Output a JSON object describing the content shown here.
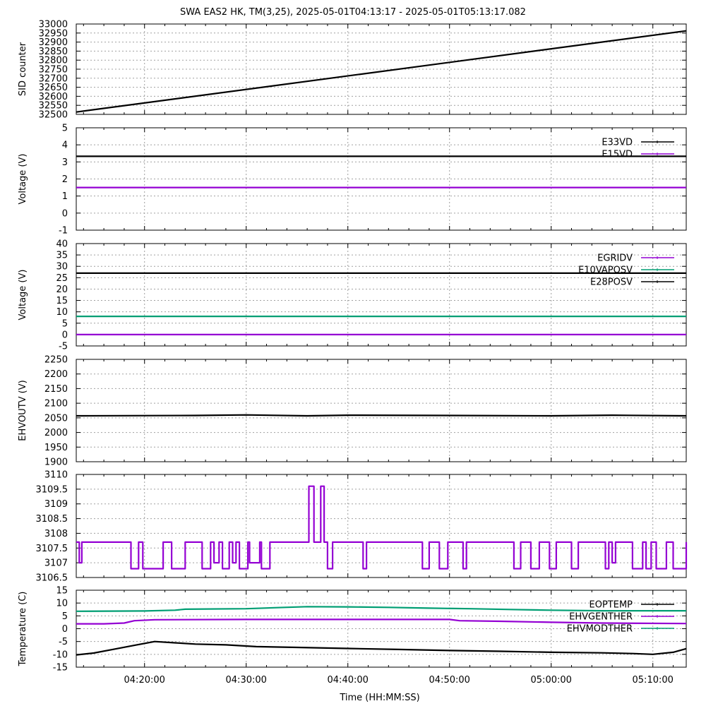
{
  "figure": {
    "title": "SWA EAS2 HK, TM(3,25),  2025-05-01T04:13:17 - 2025-05-01T05:13:17.082",
    "xlabel": "Time (HH:MM:SS)",
    "x_range": [
      "04:13:17",
      "05:13:17"
    ],
    "x_ticks": [
      "04:20:00",
      "04:30:00",
      "04:40:00",
      "04:50:00",
      "05:00:00",
      "05:10:00"
    ]
  },
  "chart_data": [
    {
      "type": "line",
      "ylabel": "SID counter",
      "ylim": [
        32500,
        33000
      ],
      "yticks": [
        "32500",
        "32550",
        "32600",
        "32650",
        "32700",
        "32750",
        "32800",
        "32850",
        "32900",
        "32950",
        "33000"
      ],
      "grid": true,
      "legend": "",
      "series": [
        {
          "name": "",
          "color": "#000000",
          "x": [
            "04:13:17",
            "05:13:17"
          ],
          "values": [
            32513,
            32962
          ]
        }
      ]
    },
    {
      "type": "line",
      "ylabel": "Voltage (V)",
      "ylim": [
        -1,
        5
      ],
      "yticks": [
        "-1",
        "0",
        "1",
        "2",
        "3",
        "4",
        "5"
      ],
      "grid": true,
      "legend": "top-right",
      "series": [
        {
          "name": "E33VD",
          "color": "#000000",
          "x": [
            "04:13:17",
            "05:13:17"
          ],
          "values": [
            3.33,
            3.33
          ]
        },
        {
          "name": "E15VD",
          "color": "#9400d3",
          "x": [
            "04:13:17",
            "05:13:17"
          ],
          "values": [
            1.5,
            1.5
          ]
        }
      ]
    },
    {
      "type": "line",
      "ylabel": "Voltage (V)",
      "ylim": [
        -5,
        40
      ],
      "yticks": [
        "-5",
        "0",
        "5",
        "10",
        "15",
        "20",
        "25",
        "30",
        "35",
        "40"
      ],
      "grid": true,
      "legend": "top-right",
      "series": [
        {
          "name": "EGRIDV",
          "color": "#9400d3",
          "x": [
            "04:13:17",
            "05:13:17"
          ],
          "values": [
            0,
            0
          ]
        },
        {
          "name": "E10VAPOSV",
          "color": "#009e73",
          "x": [
            "04:13:17",
            "05:13:17"
          ],
          "values": [
            8,
            8
          ]
        },
        {
          "name": "E28POSV",
          "color": "#000000",
          "x": [
            "04:13:17",
            "05:13:17"
          ],
          "values": [
            27,
            27
          ]
        }
      ]
    },
    {
      "type": "line",
      "ylabel": "EHVOUTV (V)",
      "ylim": [
        1900,
        2250
      ],
      "yticks": [
        "1900",
        "1950",
        "2000",
        "2050",
        "2100",
        "2150",
        "2200",
        "2250"
      ],
      "grid": true,
      "legend": "",
      "series": [
        {
          "name": "",
          "color": "#000000",
          "x": [
            "04:13:17",
            "04:25:00",
            "04:30:00",
            "04:36:00",
            "04:40:00",
            "04:50:00",
            "05:00:00",
            "05:06:00",
            "05:13:17"
          ],
          "values": [
            2057,
            2058,
            2060,
            2057,
            2059,
            2058,
            2057,
            2059,
            2057
          ]
        }
      ]
    },
    {
      "type": "line",
      "ylabel": "",
      "ylim": [
        3106.5,
        3110
      ],
      "yticks": [
        "3106.5",
        "3107",
        "3107.5",
        "3108",
        "3108.5",
        "3109",
        "3109.5",
        "3110"
      ],
      "grid": true,
      "legend": "",
      "series": [
        {
          "name": "",
          "color": "#9400d3",
          "step": true,
          "x": [
            "04:13:17",
            "04:13:35",
            "04:13:50",
            "04:18:40",
            "04:19:25",
            "04:19:50",
            "04:20:00",
            "04:21:50",
            "04:22:40",
            "04:24:00",
            "04:25:40",
            "04:26:30",
            "04:26:50",
            "04:27:20",
            "04:27:40",
            "04:28:20",
            "04:28:40",
            "04:29:00",
            "04:29:20",
            "04:30:10",
            "04:30:20",
            "04:31:20",
            "04:31:30",
            "04:32:20",
            "04:33:20",
            "04:36:10",
            "04:36:40",
            "04:37:20",
            "04:37:40",
            "04:38:00",
            "04:38:30",
            "04:41:30",
            "04:41:50",
            "04:47:20",
            "04:48:00",
            "04:49:00",
            "04:49:50",
            "04:51:20",
            "04:51:40",
            "04:56:20",
            "04:57:00",
            "04:58:00",
            "04:58:50",
            "04:59:50",
            "05:00:30",
            "05:02:00",
            "05:02:40",
            "05:05:20",
            "05:05:40",
            "05:06:00",
            "05:06:20",
            "05:08:00",
            "05:09:00",
            "05:09:20",
            "05:09:50",
            "05:10:20",
            "05:11:20",
            "05:12:00",
            "05:13:17"
          ],
          "values": [
            3107.7,
            3107.0,
            3107.7,
            3106.8,
            3107.7,
            3106.8,
            3106.8,
            3107.7,
            3106.8,
            3107.7,
            3106.8,
            3107.7,
            3107.0,
            3107.7,
            3106.8,
            3107.7,
            3107.0,
            3107.7,
            3106.8,
            3107.7,
            3107.0,
            3107.7,
            3106.8,
            3107.7,
            3107.7,
            3109.6,
            3107.7,
            3109.6,
            3107.7,
            3106.8,
            3107.7,
            3106.8,
            3107.7,
            3106.8,
            3107.7,
            3106.8,
            3107.7,
            3106.8,
            3107.7,
            3106.8,
            3107.7,
            3106.8,
            3107.7,
            3106.8,
            3107.7,
            3106.8,
            3107.7,
            3106.8,
            3107.7,
            3107.0,
            3107.7,
            3106.8,
            3107.7,
            3106.8,
            3107.7,
            3106.8,
            3107.7,
            3106.8,
            3107.7
          ]
        }
      ]
    },
    {
      "type": "line",
      "ylabel": "Temperature (C)",
      "ylim": [
        -15,
        15
      ],
      "yticks": [
        "-15",
        "-10",
        "-5",
        "0",
        "5",
        "10",
        "15"
      ],
      "grid": true,
      "legend": "top-right",
      "series": [
        {
          "name": "EOPTEMP",
          "color": "#000000",
          "x": [
            "04:13:17",
            "04:15:00",
            "04:17:00",
            "04:19:00",
            "04:21:00",
            "04:23:00",
            "04:25:00",
            "04:28:00",
            "04:31:00",
            "04:35:00",
            "04:40:00",
            "04:45:00",
            "04:50:00",
            "04:55:00",
            "05:00:00",
            "05:05:00",
            "05:08:00",
            "05:10:00",
            "05:12:00",
            "05:13:17"
          ],
          "values": [
            -10.2,
            -9.5,
            -8.0,
            -6.5,
            -5.0,
            -5.5,
            -6.0,
            -6.3,
            -7.0,
            -7.3,
            -7.7,
            -8.1,
            -8.5,
            -8.8,
            -9.2,
            -9.4,
            -9.7,
            -10.0,
            -9.2,
            -7.8
          ]
        },
        {
          "name": "EHVGENTHER",
          "color": "#9400d3",
          "x": [
            "04:13:17",
            "04:16:00",
            "04:18:00",
            "04:19:00",
            "04:21:00",
            "04:30:00",
            "04:40:00",
            "04:50:00",
            "04:51:00",
            "04:55:00",
            "05:00:00",
            "05:05:00",
            "05:13:17"
          ],
          "values": [
            1.9,
            1.9,
            2.2,
            3.1,
            3.5,
            3.6,
            3.6,
            3.6,
            3.1,
            2.9,
            2.5,
            2.2,
            2.0
          ]
        },
        {
          "name": "EHVMODTHER",
          "color": "#009e73",
          "x": [
            "04:13:17",
            "04:20:00",
            "04:23:00",
            "04:24:00",
            "04:30:00",
            "04:33:00",
            "04:36:00",
            "04:40:00",
            "04:44:00",
            "04:48:00",
            "04:52:00",
            "04:56:00",
            "05:00:00",
            "05:05:00",
            "05:13:17"
          ],
          "values": [
            6.8,
            6.9,
            7.2,
            7.6,
            7.8,
            8.2,
            8.6,
            8.5,
            8.3,
            8.0,
            7.8,
            7.5,
            7.2,
            7.0,
            7.0
          ]
        }
      ]
    }
  ]
}
